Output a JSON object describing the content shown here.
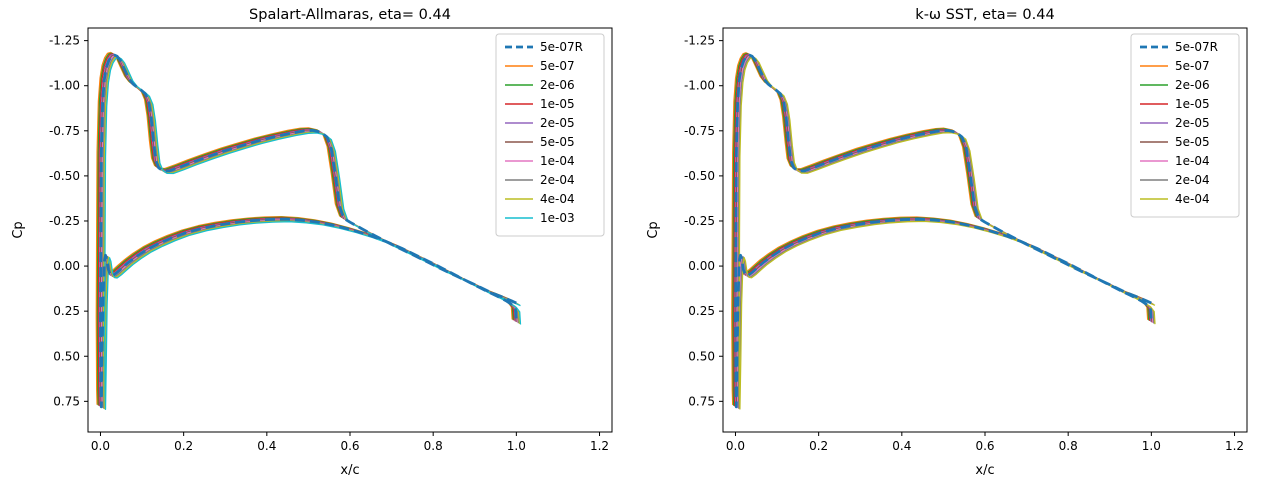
{
  "figure": {
    "background": "#ffffff"
  },
  "chart_data": [
    {
      "type": "line",
      "title": "Spalart-Allmaras, eta= 0.44",
      "xlabel": "x/c",
      "ylabel": "Cp",
      "xlim": [
        -0.03,
        1.23
      ],
      "ylim": [
        -1.32,
        0.92
      ],
      "y_inverted": true,
      "grid": false,
      "legend_position": "upper right",
      "xticks": {
        "values": [
          0.0,
          0.2,
          0.4,
          0.6,
          0.8,
          1.0,
          1.2
        ],
        "labels": [
          "0.0",
          "0.2",
          "0.4",
          "0.6",
          "0.8",
          "1.0",
          "1.2"
        ]
      },
      "yticks": {
        "values": [
          -1.25,
          -1.0,
          -0.75,
          -0.5,
          -0.25,
          0.0,
          0.25,
          0.5,
          0.75
        ],
        "labels": [
          "-1.25",
          "-1.00",
          "-0.75",
          "-0.50",
          "-0.25",
          "0.00",
          "0.25",
          "0.50",
          "0.75"
        ]
      },
      "series": [
        {
          "label": "5e-07R",
          "color": "#1f77b4",
          "style": "dashed",
          "width": 2.8
        },
        {
          "label": "5e-07",
          "color": "#ff7f0e",
          "style": "solid",
          "width": 1.3
        },
        {
          "label": "2e-06",
          "color": "#2ca02c",
          "style": "solid",
          "width": 1.3
        },
        {
          "label": "1e-05",
          "color": "#d62728",
          "style": "solid",
          "width": 1.3
        },
        {
          "label": "2e-05",
          "color": "#9467bd",
          "style": "solid",
          "width": 1.3
        },
        {
          "label": "5e-05",
          "color": "#8c564b",
          "style": "solid",
          "width": 1.3
        },
        {
          "label": "1e-04",
          "color": "#e377c2",
          "style": "solid",
          "width": 1.3
        },
        {
          "label": "2e-04",
          "color": "#7f7f7f",
          "style": "solid",
          "width": 1.3
        },
        {
          "label": "4e-04",
          "color": "#bcbd22",
          "style": "solid",
          "width": 1.3
        },
        {
          "label": "1e-03",
          "color": "#17becf",
          "style": "solid",
          "width": 1.3
        }
      ],
      "curve_xc_cp": [
        [
          1.0,
          0.205
        ],
        [
          0.99,
          0.195
        ],
        [
          0.97,
          0.175
        ],
        [
          0.94,
          0.148
        ],
        [
          0.9,
          0.103
        ],
        [
          0.86,
          0.06
        ],
        [
          0.82,
          0.016
        ],
        [
          0.78,
          -0.03
        ],
        [
          0.74,
          -0.075
        ],
        [
          0.7,
          -0.12
        ],
        [
          0.66,
          -0.168
        ],
        [
          0.63,
          -0.205
        ],
        [
          0.6,
          -0.243
        ],
        [
          0.585,
          -0.265
        ],
        [
          0.575,
          -0.33
        ],
        [
          0.565,
          -0.5
        ],
        [
          0.555,
          -0.65
        ],
        [
          0.545,
          -0.715
        ],
        [
          0.53,
          -0.742
        ],
        [
          0.51,
          -0.752
        ],
        [
          0.49,
          -0.75
        ],
        [
          0.46,
          -0.738
        ],
        [
          0.42,
          -0.718
        ],
        [
          0.38,
          -0.695
        ],
        [
          0.34,
          -0.668
        ],
        [
          0.3,
          -0.64
        ],
        [
          0.26,
          -0.608
        ],
        [
          0.22,
          -0.575
        ],
        [
          0.19,
          -0.548
        ],
        [
          0.165,
          -0.527
        ],
        [
          0.15,
          -0.528
        ],
        [
          0.14,
          -0.545
        ],
        [
          0.133,
          -0.585
        ],
        [
          0.128,
          -0.68
        ],
        [
          0.122,
          -0.82
        ],
        [
          0.116,
          -0.91
        ],
        [
          0.108,
          -0.955
        ],
        [
          0.098,
          -0.975
        ],
        [
          0.088,
          -0.992
        ],
        [
          0.078,
          -1.01
        ],
        [
          0.068,
          -1.04
        ],
        [
          0.058,
          -1.09
        ],
        [
          0.048,
          -1.14
        ],
        [
          0.04,
          -1.163
        ],
        [
          0.034,
          -1.17
        ],
        [
          0.027,
          -1.165
        ],
        [
          0.02,
          -1.14
        ],
        [
          0.014,
          -1.1
        ],
        [
          0.009,
          -1.03
        ],
        [
          0.005,
          -0.9
        ],
        [
          0.002,
          -0.62
        ],
        [
          0.001,
          -0.2
        ],
        [
          0.0,
          0.3
        ],
        [
          0.001,
          0.7
        ],
        [
          0.002,
          0.78
        ],
        [
          0.004,
          0.5
        ],
        [
          0.006,
          0.2
        ],
        [
          0.009,
          -0.02
        ],
        [
          0.012,
          -0.06
        ],
        [
          0.015,
          -0.04
        ],
        [
          0.019,
          0.02
        ],
        [
          0.024,
          0.05
        ],
        [
          0.03,
          0.052
        ],
        [
          0.04,
          0.035
        ],
        [
          0.052,
          0.01
        ],
        [
          0.068,
          -0.022
        ],
        [
          0.088,
          -0.056
        ],
        [
          0.112,
          -0.092
        ],
        [
          0.14,
          -0.125
        ],
        [
          0.17,
          -0.155
        ],
        [
          0.205,
          -0.185
        ],
        [
          0.245,
          -0.21
        ],
        [
          0.285,
          -0.228
        ],
        [
          0.325,
          -0.242
        ],
        [
          0.365,
          -0.252
        ],
        [
          0.405,
          -0.258
        ],
        [
          0.445,
          -0.26
        ],
        [
          0.485,
          -0.254
        ],
        [
          0.525,
          -0.242
        ],
        [
          0.565,
          -0.224
        ],
        [
          0.605,
          -0.2
        ],
        [
          0.645,
          -0.172
        ],
        [
          0.685,
          -0.138
        ],
        [
          0.725,
          -0.098
        ],
        [
          0.765,
          -0.053
        ],
        [
          0.805,
          -0.008
        ],
        [
          0.845,
          0.04
        ],
        [
          0.885,
          0.088
        ],
        [
          0.925,
          0.135
        ],
        [
          0.955,
          0.168
        ],
        [
          0.975,
          0.192
        ],
        [
          0.99,
          0.215
        ],
        [
          0.998,
          0.24
        ],
        [
          1.0,
          0.31
        ]
      ]
    },
    {
      "type": "line",
      "title": "k-ω SST, eta= 0.44",
      "xlabel": "x/c",
      "ylabel": "Cp",
      "xlim": [
        -0.03,
        1.23
      ],
      "ylim": [
        -1.32,
        0.92
      ],
      "y_inverted": true,
      "grid": false,
      "legend_position": "upper right",
      "xticks": {
        "values": [
          0.0,
          0.2,
          0.4,
          0.6,
          0.8,
          1.0,
          1.2
        ],
        "labels": [
          "0.0",
          "0.2",
          "0.4",
          "0.6",
          "0.8",
          "1.0",
          "1.2"
        ]
      },
      "yticks": {
        "values": [
          -1.25,
          -1.0,
          -0.75,
          -0.5,
          -0.25,
          0.0,
          0.25,
          0.5,
          0.75
        ],
        "labels": [
          "-1.25",
          "-1.00",
          "-0.75",
          "-0.50",
          "-0.25",
          "0.00",
          "0.25",
          "0.50",
          "0.75"
        ]
      },
      "series": [
        {
          "label": "5e-07R",
          "color": "#1f77b4",
          "style": "dashed",
          "width": 2.8
        },
        {
          "label": "5e-07",
          "color": "#ff7f0e",
          "style": "solid",
          "width": 1.3
        },
        {
          "label": "2e-06",
          "color": "#2ca02c",
          "style": "solid",
          "width": 1.3
        },
        {
          "label": "1e-05",
          "color": "#d62728",
          "style": "solid",
          "width": 1.3
        },
        {
          "label": "2e-05",
          "color": "#9467bd",
          "style": "solid",
          "width": 1.3
        },
        {
          "label": "5e-05",
          "color": "#8c564b",
          "style": "solid",
          "width": 1.3
        },
        {
          "label": "1e-04",
          "color": "#e377c2",
          "style": "solid",
          "width": 1.3
        },
        {
          "label": "2e-04",
          "color": "#7f7f7f",
          "style": "solid",
          "width": 1.3
        },
        {
          "label": "4e-04",
          "color": "#bcbd22",
          "style": "solid",
          "width": 1.3
        }
      ],
      "curve_xc_cp": [
        [
          1.0,
          0.205
        ],
        [
          0.99,
          0.195
        ],
        [
          0.97,
          0.175
        ],
        [
          0.94,
          0.148
        ],
        [
          0.9,
          0.103
        ],
        [
          0.86,
          0.06
        ],
        [
          0.82,
          0.016
        ],
        [
          0.78,
          -0.03
        ],
        [
          0.74,
          -0.075
        ],
        [
          0.7,
          -0.12
        ],
        [
          0.66,
          -0.168
        ],
        [
          0.63,
          -0.205
        ],
        [
          0.6,
          -0.243
        ],
        [
          0.585,
          -0.265
        ],
        [
          0.575,
          -0.33
        ],
        [
          0.565,
          -0.5
        ],
        [
          0.555,
          -0.65
        ],
        [
          0.545,
          -0.715
        ],
        [
          0.53,
          -0.742
        ],
        [
          0.51,
          -0.752
        ],
        [
          0.49,
          -0.75
        ],
        [
          0.46,
          -0.738
        ],
        [
          0.42,
          -0.718
        ],
        [
          0.38,
          -0.695
        ],
        [
          0.34,
          -0.668
        ],
        [
          0.3,
          -0.64
        ],
        [
          0.26,
          -0.608
        ],
        [
          0.22,
          -0.575
        ],
        [
          0.19,
          -0.548
        ],
        [
          0.165,
          -0.527
        ],
        [
          0.15,
          -0.528
        ],
        [
          0.14,
          -0.545
        ],
        [
          0.133,
          -0.585
        ],
        [
          0.128,
          -0.68
        ],
        [
          0.122,
          -0.82
        ],
        [
          0.116,
          -0.91
        ],
        [
          0.108,
          -0.955
        ],
        [
          0.098,
          -0.975
        ],
        [
          0.088,
          -0.992
        ],
        [
          0.078,
          -1.01
        ],
        [
          0.068,
          -1.04
        ],
        [
          0.058,
          -1.09
        ],
        [
          0.048,
          -1.14
        ],
        [
          0.04,
          -1.163
        ],
        [
          0.034,
          -1.17
        ],
        [
          0.027,
          -1.165
        ],
        [
          0.02,
          -1.14
        ],
        [
          0.014,
          -1.1
        ],
        [
          0.009,
          -1.03
        ],
        [
          0.005,
          -0.9
        ],
        [
          0.002,
          -0.62
        ],
        [
          0.001,
          -0.2
        ],
        [
          0.0,
          0.3
        ],
        [
          0.001,
          0.7
        ],
        [
          0.002,
          0.78
        ],
        [
          0.004,
          0.5
        ],
        [
          0.006,
          0.2
        ],
        [
          0.009,
          -0.02
        ],
        [
          0.012,
          -0.06
        ],
        [
          0.015,
          -0.04
        ],
        [
          0.019,
          0.02
        ],
        [
          0.024,
          0.05
        ],
        [
          0.03,
          0.052
        ],
        [
          0.04,
          0.035
        ],
        [
          0.052,
          0.01
        ],
        [
          0.068,
          -0.022
        ],
        [
          0.088,
          -0.056
        ],
        [
          0.112,
          -0.092
        ],
        [
          0.14,
          -0.125
        ],
        [
          0.17,
          -0.155
        ],
        [
          0.205,
          -0.185
        ],
        [
          0.245,
          -0.21
        ],
        [
          0.285,
          -0.228
        ],
        [
          0.325,
          -0.242
        ],
        [
          0.365,
          -0.252
        ],
        [
          0.405,
          -0.258
        ],
        [
          0.445,
          -0.26
        ],
        [
          0.485,
          -0.254
        ],
        [
          0.525,
          -0.242
        ],
        [
          0.565,
          -0.224
        ],
        [
          0.605,
          -0.2
        ],
        [
          0.645,
          -0.172
        ],
        [
          0.685,
          -0.138
        ],
        [
          0.725,
          -0.098
        ],
        [
          0.765,
          -0.053
        ],
        [
          0.805,
          -0.008
        ],
        [
          0.845,
          0.04
        ],
        [
          0.885,
          0.088
        ],
        [
          0.925,
          0.135
        ],
        [
          0.955,
          0.168
        ],
        [
          0.975,
          0.192
        ],
        [
          0.99,
          0.215
        ],
        [
          0.998,
          0.24
        ],
        [
          1.0,
          0.31
        ]
      ]
    }
  ]
}
